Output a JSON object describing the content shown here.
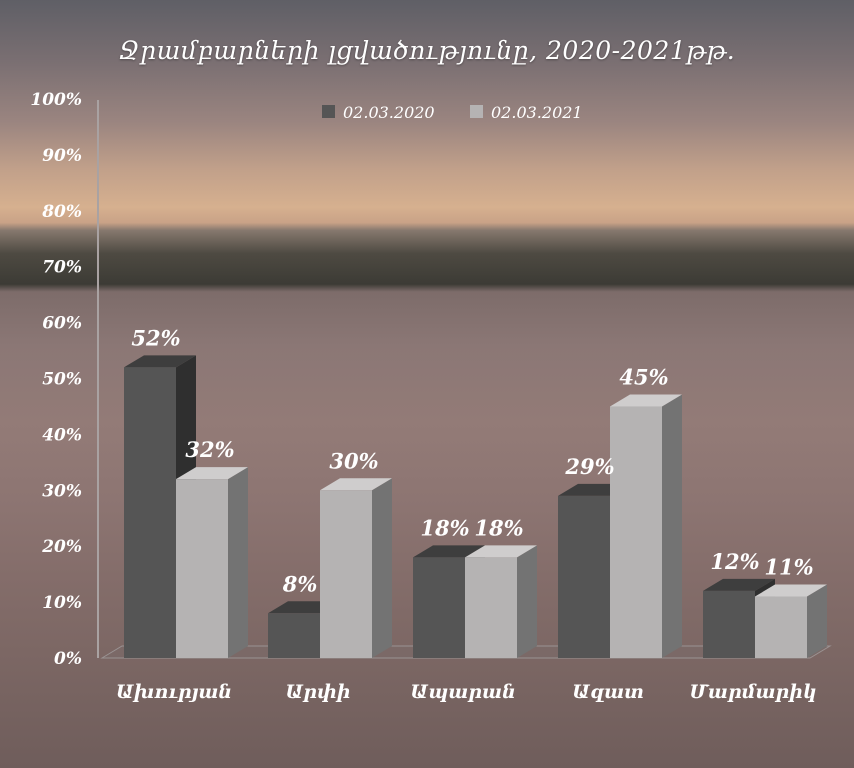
{
  "chart_data": {
    "type": "bar",
    "title": "Ջրամբարների լցվածությունը,  2020-2021թթ.",
    "categories": [
      "Ախուրյան",
      "Արփի",
      "Ապարան",
      "Ազատ",
      "Մարմարիկ"
    ],
    "series": [
      {
        "name": "02.03.2020",
        "values": [
          52,
          8,
          18,
          29,
          12
        ],
        "labels": [
          "52%",
          "8%",
          "18%",
          "29%",
          "12%"
        ]
      },
      {
        "name": "02.03.2021",
        "values": [
          32,
          30,
          18,
          45,
          11
        ],
        "labels": [
          "32%",
          "30%",
          "18%",
          "45%",
          "11%"
        ]
      }
    ],
    "yticks": [
      "0%",
      "10%",
      "20%",
      "30%",
      "40%",
      "50%",
      "60%",
      "70%",
      "80%",
      "90%",
      "100%"
    ],
    "ylim": [
      0,
      100
    ],
    "legend": "top-center",
    "grid": false,
    "colors": {
      "s1_front": "#555555",
      "s1_side": "#2f2f2f",
      "s1_top": "#3e3e3e",
      "s2_front": "#b5b3b3",
      "s2_side": "#737373",
      "s2_top": "#cfcdcd",
      "text": "#ffffff"
    }
  }
}
